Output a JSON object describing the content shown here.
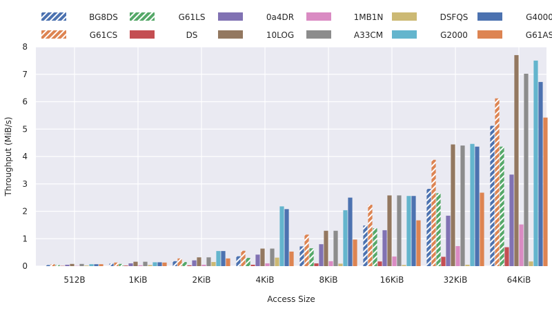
{
  "chart_data": {
    "type": "bar",
    "title": "",
    "xlabel": "Access Size",
    "ylabel": "Throughput (MiB/s)",
    "ylim": [
      0,
      8
    ],
    "yticks": [
      "0",
      "1",
      "2",
      "3",
      "4",
      "5",
      "6",
      "7",
      "8"
    ],
    "grid": true,
    "legend_position": "top",
    "categories": [
      "512B",
      "1KiB",
      "2KiB",
      "4KiB",
      "8KiB",
      "16KiB",
      "32KiB",
      "64KiB"
    ],
    "series": [
      {
        "name": "BG8DS",
        "color": "#4c72b0",
        "hatch": true,
        "values": [
          0.04,
          0.09,
          0.18,
          0.36,
          0.72,
          1.48,
          2.82,
          5.12
        ]
      },
      {
        "name": "G61CS",
        "color": "#dd8452",
        "hatch": true,
        "values": [
          0.07,
          0.13,
          0.28,
          0.56,
          1.15,
          2.24,
          3.88,
          6.12
        ]
      },
      {
        "name": "G61LS",
        "color": "#55a868",
        "hatch": true,
        "values": [
          0.04,
          0.08,
          0.15,
          0.3,
          0.65,
          1.38,
          2.66,
          4.36
        ]
      },
      {
        "name": "DS",
        "color": "#c44e52",
        "hatch": false,
        "values": [
          0.01,
          0.02,
          0.03,
          0.05,
          0.1,
          0.17,
          0.34,
          0.69
        ]
      },
      {
        "name": "0a4DR",
        "color": "#8172b3",
        "hatch": false,
        "values": [
          0.05,
          0.1,
          0.21,
          0.42,
          0.8,
          1.31,
          1.84,
          3.34
        ]
      },
      {
        "name": "10LOG",
        "color": "#937860",
        "hatch": false,
        "values": [
          0.08,
          0.16,
          0.32,
          0.64,
          1.29,
          2.58,
          4.44,
          7.7
        ]
      },
      {
        "name": "1MB1N",
        "color": "#da8bc3",
        "hatch": false,
        "values": [
          0.01,
          0.03,
          0.05,
          0.1,
          0.18,
          0.35,
          0.73,
          1.52
        ]
      },
      {
        "name": "A33CM",
        "color": "#8c8c8c",
        "hatch": false,
        "values": [
          0.08,
          0.16,
          0.32,
          0.64,
          1.29,
          2.58,
          4.4,
          7.02
        ]
      },
      {
        "name": "DSFQS",
        "color": "#ccb974",
        "hatch": false,
        "values": [
          0.02,
          0.04,
          0.15,
          0.31,
          0.09,
          0.04,
          0.05,
          0.17
        ]
      },
      {
        "name": "G2000",
        "color": "#64b5cd",
        "hatch": false,
        "values": [
          0.07,
          0.14,
          0.55,
          2.18,
          2.04,
          2.56,
          4.46,
          7.5
        ]
      },
      {
        "name": "G4000",
        "color": "#4c72b0",
        "hatch": false,
        "values": [
          0.07,
          0.14,
          0.55,
          2.08,
          2.5,
          2.56,
          4.36,
          6.72
        ]
      },
      {
        "name": "G61AS",
        "color": "#dd8452",
        "hatch": false,
        "values": [
          0.07,
          0.13,
          0.28,
          0.53,
          0.97,
          1.67,
          2.68,
          5.42
        ]
      }
    ]
  }
}
